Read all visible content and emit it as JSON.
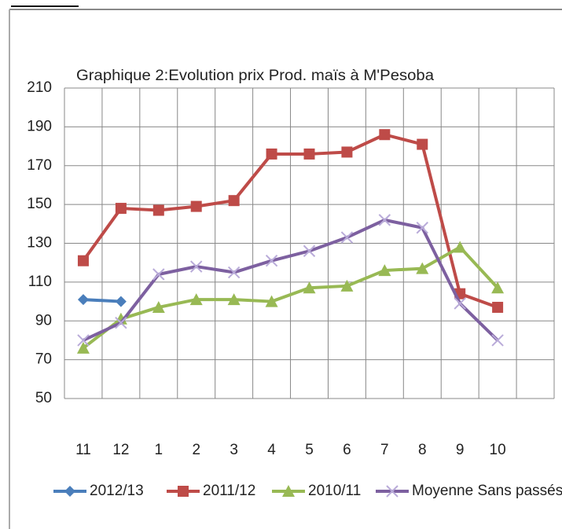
{
  "chart_data": {
    "type": "line",
    "title": "Graphique 2:Evolution prix Prod. maïs à M'Pesoba",
    "categories": [
      "11",
      "12",
      "1",
      "2",
      "3",
      "4",
      "5",
      "6",
      "7",
      "8",
      "9",
      "10",
      null
    ],
    "series": [
      {
        "name": "2012/13",
        "color": "#4a7ebb",
        "marker": "diamond",
        "values": [
          101,
          100,
          null,
          null,
          null,
          null,
          null,
          null,
          null,
          null,
          null,
          null,
          null
        ]
      },
      {
        "name": "2011/12",
        "color": "#be4b48",
        "marker": "square",
        "values": [
          121,
          148,
          147,
          149,
          152,
          176,
          176,
          177,
          186,
          181,
          104,
          97,
          null
        ]
      },
      {
        "name": "2010/11",
        "color": "#98b954",
        "marker": "triangle",
        "values": [
          76,
          91,
          97,
          101,
          101,
          100,
          107,
          108,
          116,
          117,
          128,
          107,
          null
        ]
      },
      {
        "name": "Moyenne Sans passés",
        "color": "#7d60a0",
        "marker": "x",
        "values": [
          80,
          89,
          114,
          118,
          115,
          121,
          126,
          133,
          142,
          138,
          99,
          80,
          null
        ]
      }
    ],
    "ylim": [
      50,
      210
    ],
    "yticks": [
      50,
      70,
      90,
      110,
      130,
      150,
      170,
      190,
      210
    ],
    "grid": true,
    "legend": "bottom"
  }
}
